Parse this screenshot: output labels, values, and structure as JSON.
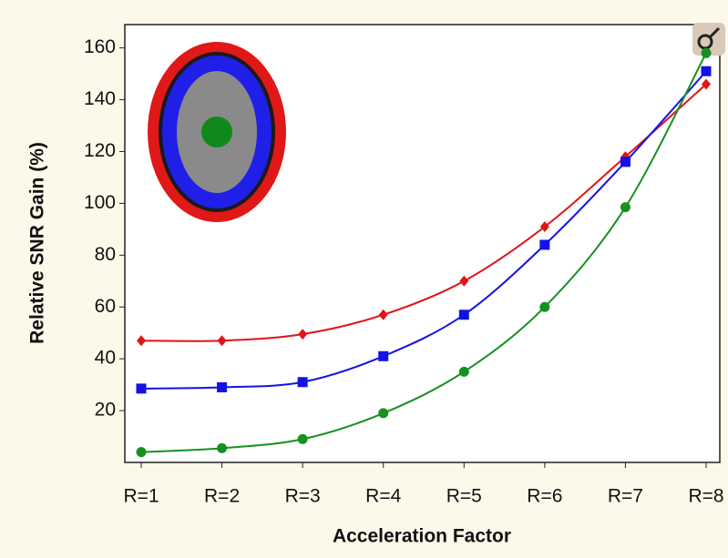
{
  "chart_data": {
    "type": "line",
    "x_label": "Acceleration Factor",
    "y_label": "Relative SNR Gain (%)",
    "categories": [
      "R=1",
      "R=2",
      "R=3",
      "R=4",
      "R=5",
      "R=6",
      "R=7",
      "R=8"
    ],
    "series": [
      {
        "color": "#e0141a",
        "marker": "diamond",
        "values": [
          47,
          47,
          49.5,
          57,
          70,
          91,
          118,
          146
        ]
      },
      {
        "color": "#1212e6",
        "marker": "square",
        "values": [
          28.5,
          29,
          31,
          41,
          57,
          84,
          116,
          151
        ]
      },
      {
        "color": "#16911f",
        "marker": "circle",
        "values": [
          4,
          5.5,
          9,
          19,
          35,
          60,
          98.5,
          158
        ]
      }
    ],
    "ylim": [
      0,
      169
    ],
    "yticks": [
      20,
      40,
      60,
      80,
      100,
      120,
      140,
      160
    ],
    "grid": false
  }
}
